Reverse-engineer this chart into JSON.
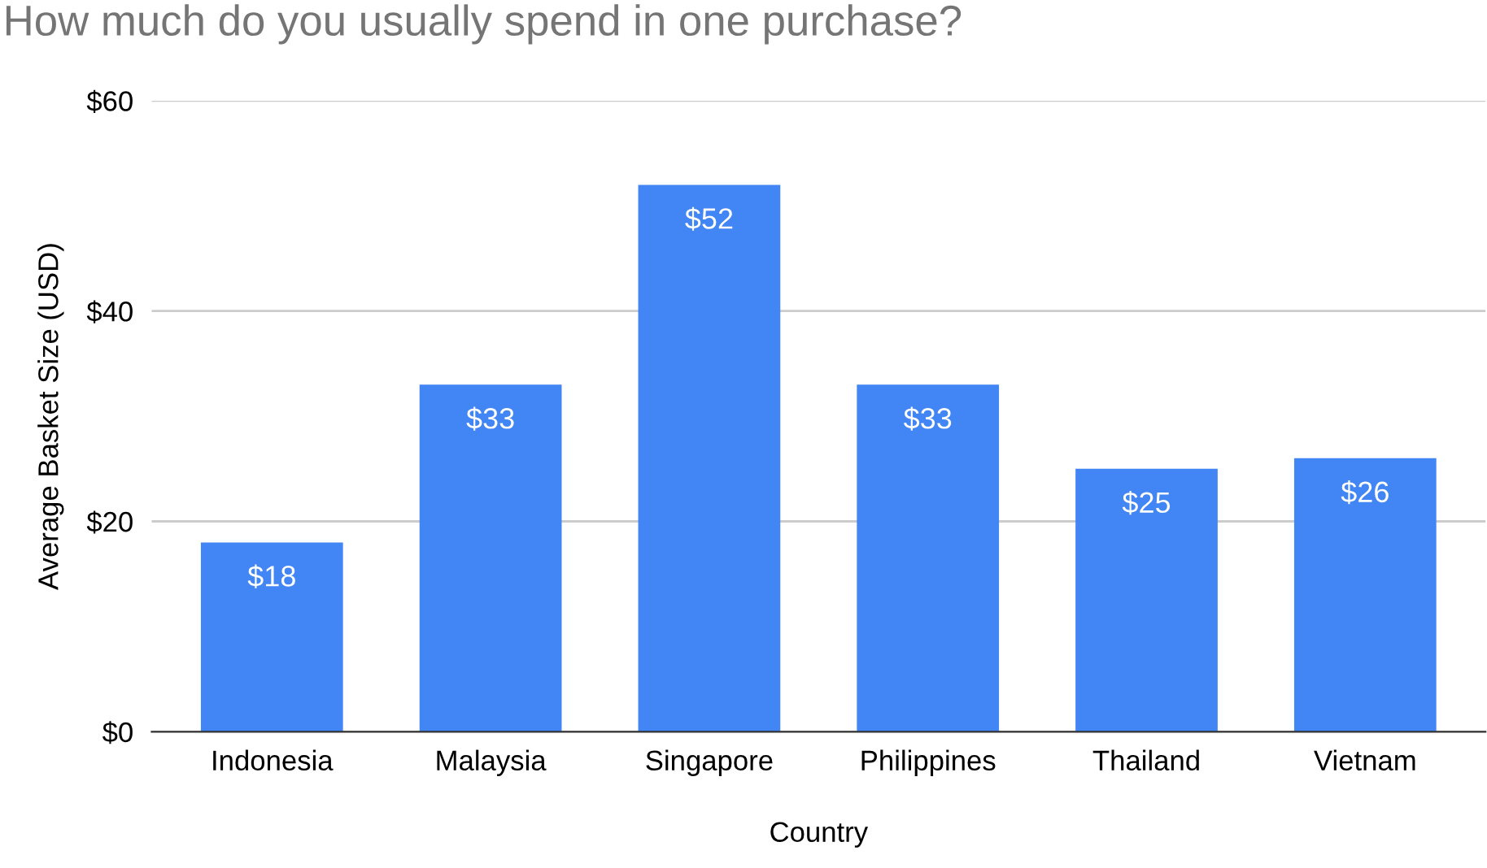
{
  "chart_data": {
    "type": "bar",
    "title": "How much do you usually spend in one purchase?",
    "xlabel": "Country",
    "ylabel": "Average Basket Size (USD)",
    "categories": [
      "Indonesia",
      "Malaysia",
      "Singapore",
      "Philippines",
      "Thailand",
      "Vietnam"
    ],
    "values": [
      18,
      33,
      52,
      33,
      25,
      26
    ],
    "value_labels": [
      "$18",
      "$33",
      "$52",
      "$33",
      "$25",
      "$26"
    ],
    "color": "#4285f4",
    "ylim": [
      0,
      60
    ],
    "yticks": [
      {
        "value": 0,
        "label": "$0"
      },
      {
        "value": 20,
        "label": "$20"
      },
      {
        "value": 40,
        "label": "$40"
      },
      {
        "value": 60,
        "label": "$60"
      }
    ],
    "grid": "y"
  }
}
